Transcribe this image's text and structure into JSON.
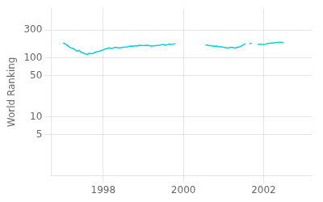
{
  "chart_data": {
    "type": "line",
    "ylabel": "World Ranking",
    "color": "#00d0d0",
    "log": "y",
    "grid": true,
    "xlim": [
      1996.7,
      2003.2
    ],
    "xticks": [
      1998,
      2000,
      2002
    ],
    "ylim": [
      1,
      700
    ],
    "yticks": [
      5,
      10,
      50,
      100,
      300
    ],
    "series": [
      {
        "x": [
          1997.0,
          1997.05,
          1997.1,
          1997.15,
          1997.2,
          1997.25,
          1997.3,
          1997.35,
          1997.4,
          1997.45,
          1997.5,
          1997.55,
          1997.6,
          1997.65,
          1997.7,
          1997.75,
          1997.8,
          1997.85,
          1997.9,
          1997.95,
          1998.0,
          1998.05,
          1998.1,
          1998.15,
          1998.2,
          1998.25,
          1998.3,
          1998.4,
          1998.5,
          1998.6,
          1998.65,
          1998.7,
          1998.75,
          1998.8,
          1998.85,
          1998.9,
          1999.0,
          1999.1,
          1999.2,
          1999.3,
          1999.4,
          1999.45,
          1999.5,
          1999.55,
          1999.6,
          1999.65,
          1999.7,
          1999.75,
          1999.8
        ],
        "values": [
          180,
          175,
          165,
          155,
          148,
          145,
          138,
          130,
          135,
          125,
          122,
          118,
          115,
          120,
          118,
          120,
          125,
          128,
          130,
          133,
          138,
          142,
          145,
          148,
          145,
          148,
          152,
          148,
          152,
          155,
          158,
          160,
          158,
          162,
          160,
          165,
          162,
          165,
          160,
          162,
          165,
          168,
          170,
          165,
          168,
          172,
          170,
          172,
          175
        ]
      },
      {
        "x": [
          2000.55,
          2000.6,
          2000.65,
          2000.7,
          2000.75,
          2000.8,
          2000.85,
          2000.9,
          2000.95,
          2001.0,
          2001.05,
          2001.1,
          2001.15,
          2001.2,
          2001.25,
          2001.3,
          2001.35,
          2001.4,
          2001.45,
          2001.5,
          2001.55
        ],
        "values": [
          168,
          165,
          162,
          162,
          158,
          160,
          158,
          155,
          155,
          152,
          150,
          148,
          150,
          152,
          150,
          148,
          152,
          155,
          160,
          168,
          175
        ]
      },
      {
        "x": [
          2001.65,
          2001.7
        ],
        "values": [
          175,
          178
        ]
      },
      {
        "x": [
          2001.85,
          2001.9,
          2002.0,
          2002.05,
          2002.1,
          2002.15,
          2002.2,
          2002.3,
          2002.4,
          2002.5
        ],
        "values": [
          168,
          172,
          170,
          172,
          175,
          178,
          180,
          182,
          185,
          182
        ]
      }
    ]
  }
}
